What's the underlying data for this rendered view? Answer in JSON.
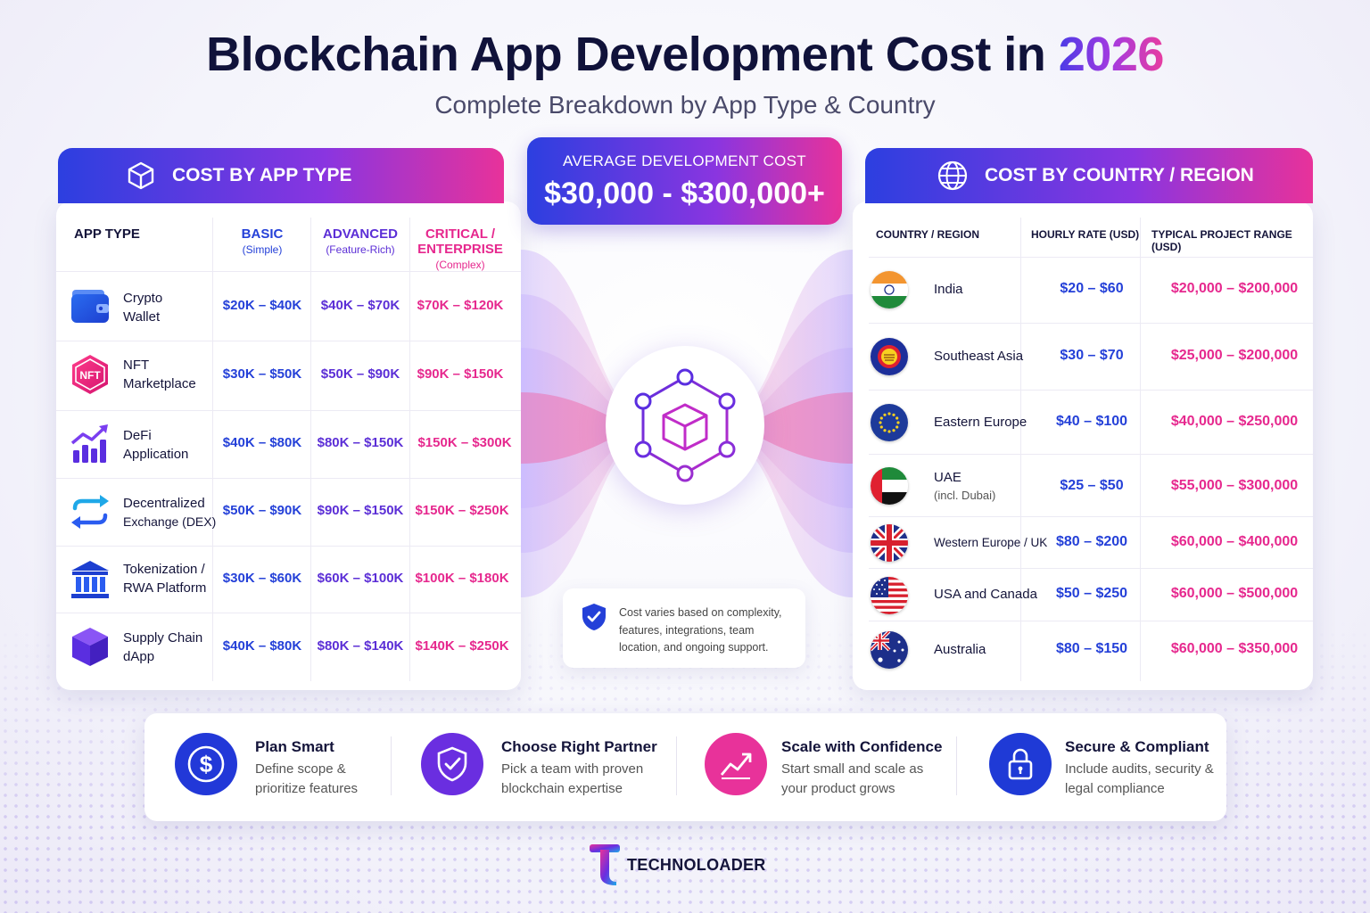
{
  "header": {
    "title_main": "Blockchain App Development Cost in ",
    "title_year": "2026",
    "subtitle": "Complete Breakdown by App Type & Country"
  },
  "average": {
    "label": "AVERAGE DEVELOPMENT COST",
    "value": "$30,000 - $300,000+"
  },
  "app_type_panel": {
    "title": "COST BY APP TYPE",
    "col_app": "APP TYPE",
    "col_basic": "BASIC",
    "col_basic_sub": "(Simple)",
    "col_adv": "ADVANCED",
    "col_adv_sub": "(Feature-Rich)",
    "col_crit_1": "CRITICAL /",
    "col_crit_2": "ENTERPRISE",
    "col_crit_sub": "(Complex)",
    "rows": [
      {
        "name1": "Crypto",
        "name2": "Wallet",
        "icon": "wallet-icon",
        "basic": "$20K – $40K",
        "advanced": "$40K – $70K",
        "critical": "$70K – $120K"
      },
      {
        "name1": "NFT",
        "name2": "Marketplace",
        "icon": "nft-icon",
        "basic": "$30K – $50K",
        "advanced": "$50K – $90K",
        "critical": "$90K – $150K"
      },
      {
        "name1": "DeFi",
        "name2": "Application",
        "icon": "growth-chart-icon",
        "basic": "$40K – $80K",
        "advanced": "$80K – $150K",
        "critical": "$150K – $300K"
      },
      {
        "name1": "Decentralized",
        "name2": "Exchange (DEX)",
        "icon": "exchange-arrows-icon",
        "basic": "$50K – $90K",
        "advanced": "$90K – $150K",
        "critical": "$150K – $250K"
      },
      {
        "name1": "Tokenization /",
        "name2": "RWA Platform",
        "icon": "bank-icon",
        "basic": "$30K – $60K",
        "advanced": "$60K – $100K",
        "critical": "$100K – $180K"
      },
      {
        "name1": "Supply Chain",
        "name2": "dApp",
        "icon": "cube-icon",
        "basic": "$40K – $80K",
        "advanced": "$80K – $140K",
        "critical": "$140K – $250K"
      }
    ]
  },
  "country_panel": {
    "title": "COST BY COUNTRY / REGION",
    "col_country": "COUNTRY / REGION",
    "col_rate": "HOURLY RATE (USD)",
    "col_range": "TYPICAL PROJECT RANGE (USD)",
    "rows": [
      {
        "name": "India",
        "note": "",
        "flag": "india-flag-icon",
        "rate": "$20 – $60",
        "range": "$20,000 – $200,000"
      },
      {
        "name": "Southeast Asia",
        "note": "",
        "flag": "asean-flag-icon",
        "rate": "$30 – $70",
        "range": "$25,000 – $200,000"
      },
      {
        "name": "Eastern Europe",
        "note": "",
        "flag": "eu-flag-icon",
        "rate": "$40 – $100",
        "range": "$40,000 – $250,000"
      },
      {
        "name": "UAE",
        "note": "(incl. Dubai)",
        "flag": "uae-flag-icon",
        "rate": "$25 – $50",
        "range": "$55,000 – $300,000"
      },
      {
        "name": "Western Europe / UK",
        "note": "",
        "flag": "uk-flag-icon",
        "rate": "$80 – $200",
        "range": "$60,000 – $400,000"
      },
      {
        "name": "USA and Canada",
        "note": "",
        "flag": "usa-flag-icon",
        "rate": "$50 – $250",
        "range": "$60,000 – $500,000"
      },
      {
        "name": "Australia",
        "note": "",
        "flag": "australia-flag-icon",
        "rate": "$80 – $150",
        "range": "$60,000 – $350,000"
      }
    ]
  },
  "note": "Cost varies based on complexity, features, integrations, team location, and ongoing support.",
  "tips": [
    {
      "title": "Plan Smart",
      "text": "Define scope & prioritize features",
      "icon": "dollar-icon",
      "color": "#2238d8"
    },
    {
      "title": "Choose Right Partner",
      "text": "Pick a team with proven blockchain expertise",
      "icon": "shield-check-icon",
      "color": "#6a2ee0"
    },
    {
      "title": "Scale with Confidence",
      "text": "Start small and scale as your product grows",
      "icon": "growth-chart-icon",
      "color": "#e8329a"
    },
    {
      "title": "Secure & Compliant",
      "text": "Include audits, security & legal compliance",
      "icon": "lock-icon",
      "color": "#1f3ad6"
    }
  ],
  "brand": {
    "name": "TECHNOLOADER"
  },
  "colors": {
    "blue": "#2440d8",
    "purple": "#5b2ed6",
    "pink": "#e6288e",
    "navy": "#10123a"
  }
}
